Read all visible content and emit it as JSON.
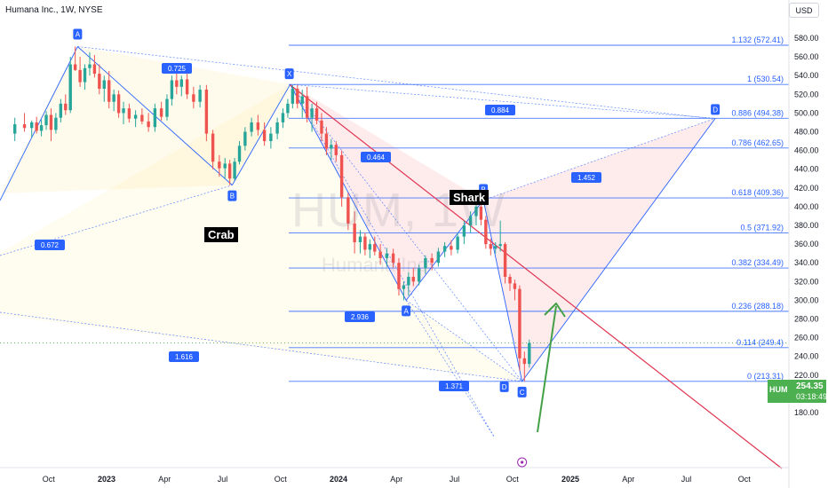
{
  "header": {
    "symbol_info": "Humana Inc., 1W, NYSE",
    "currency": "USD"
  },
  "watermark": {
    "ticker": "HUM, 1W",
    "name": "Humana Inc."
  },
  "price_tag": {
    "symbol": "HUM",
    "price": "254.35",
    "countdown": "03:18:49"
  },
  "patterns": {
    "crab": "Crab",
    "shark": "Shark"
  },
  "colors": {
    "candle_up": "#26a69a",
    "candle_down": "#ef5350",
    "pattern_line": "#2962ff",
    "trendline": "#e0334f",
    "arrow": "#43a047",
    "fib_line": "#2962ff"
  },
  "chart_data": {
    "type": "candlestick",
    "x_axis": {
      "ticks": [
        {
          "label": "Oct",
          "date": "2022-10"
        },
        {
          "label": "2023",
          "date": "2023-01"
        },
        {
          "label": "Apr",
          "date": "2023-04"
        },
        {
          "label": "Jul",
          "date": "2023-07"
        },
        {
          "label": "Oct",
          "date": "2023-10"
        },
        {
          "label": "2024",
          "date": "2024-01"
        },
        {
          "label": "Apr",
          "date": "2024-04"
        },
        {
          "label": "Jul",
          "date": "2024-07"
        },
        {
          "label": "Oct",
          "date": "2024-10"
        },
        {
          "label": "2025",
          "date": "2025-01"
        },
        {
          "label": "Apr",
          "date": "2025-04"
        },
        {
          "label": "Jul",
          "date": "2025-07"
        },
        {
          "label": "Oct",
          "date": "2025-10"
        }
      ]
    },
    "y_axis": {
      "range": [
        180,
        590
      ],
      "ticks": [
        "580.00",
        "560.00",
        "540.00",
        "520.00",
        "500.00",
        "480.00",
        "460.00",
        "440.00",
        "420.00",
        "400.00",
        "380.00",
        "360.00",
        "340.00",
        "320.00",
        "300.00",
        "280.00",
        "260.00",
        "240.00",
        "220.00",
        "200.00",
        "180.00"
      ]
    },
    "fib_levels": [
      {
        "label": "1.132 (572.41)",
        "value": 572.41
      },
      {
        "label": "1 (530.54)",
        "value": 530.54
      },
      {
        "label": "0.886 (494.38)",
        "value": 494.38
      },
      {
        "label": "0.786 (462.65)",
        "value": 462.65
      },
      {
        "label": "0.618 (409.36)",
        "value": 409.36
      },
      {
        "label": "0.5 (371.92)",
        "value": 371.92
      },
      {
        "label": "0.382 (334.49)",
        "value": 334.49
      },
      {
        "label": "0.236 (288.18)",
        "value": 288.18
      },
      {
        "label": "0.114 (249.4)",
        "value": 249.4
      },
      {
        "label": "0 (213.31)",
        "value": 213.31
      }
    ],
    "crab_pattern": {
      "points": [
        {
          "label": "",
          "date": "2022-04",
          "value": 490
        },
        {
          "label": "A",
          "date": "2022-11",
          "value": 571
        },
        {
          "label": "B",
          "date": "2023-07",
          "value": 423
        },
        {
          "label": "X",
          "date": "2023-10",
          "value": 530.54
        }
      ],
      "ratios": [
        "0.725",
        "0.672",
        "1.616"
      ]
    },
    "shark_pattern": {
      "points": [
        {
          "label": "X",
          "date": "2023-10",
          "value": 530.54
        },
        {
          "label": "A",
          "date": "2024-04",
          "value": 300
        },
        {
          "label": "B",
          "date": "2024-08",
          "value": 407
        },
        {
          "label": "C",
          "date": "2024-10",
          "value": 213.31
        },
        {
          "label": "D",
          "date": "2025-08",
          "value": 494.38
        }
      ],
      "ratios": [
        "0.884",
        "0.464",
        "2.936",
        "1.371",
        "1.452"
      ]
    },
    "d_marker": {
      "label": "D",
      "date": "2024-10",
      "value": 213.31
    },
    "last_price": 254.35,
    "candles": [
      {
        "d": "2022-08",
        "o": 478,
        "h": 495,
        "l": 470,
        "c": 488
      },
      {
        "d": "2022-08",
        "o": 488,
        "h": 500,
        "l": 480,
        "c": 484
      },
      {
        "d": "2022-09",
        "o": 484,
        "h": 492,
        "l": 474,
        "c": 490
      },
      {
        "d": "2022-09",
        "o": 490,
        "h": 496,
        "l": 478,
        "c": 481
      },
      {
        "d": "2022-09",
        "o": 481,
        "h": 493,
        "l": 475,
        "c": 487
      },
      {
        "d": "2022-09",
        "o": 487,
        "h": 502,
        "l": 482,
        "c": 498
      },
      {
        "d": "2022-10",
        "o": 498,
        "h": 505,
        "l": 470,
        "c": 482
      },
      {
        "d": "2022-10",
        "o": 482,
        "h": 500,
        "l": 478,
        "c": 495
      },
      {
        "d": "2022-10",
        "o": 495,
        "h": 515,
        "l": 490,
        "c": 510
      },
      {
        "d": "2022-10",
        "o": 510,
        "h": 520,
        "l": 498,
        "c": 503
      },
      {
        "d": "2022-11",
        "o": 503,
        "h": 560,
        "l": 500,
        "c": 552
      },
      {
        "d": "2022-11",
        "o": 552,
        "h": 571,
        "l": 545,
        "c": 546
      },
      {
        "d": "2022-11",
        "o": 546,
        "h": 560,
        "l": 528,
        "c": 533
      },
      {
        "d": "2022-11",
        "o": 533,
        "h": 552,
        "l": 525,
        "c": 548
      },
      {
        "d": "2022-12",
        "o": 548,
        "h": 565,
        "l": 540,
        "c": 552
      },
      {
        "d": "2022-12",
        "o": 552,
        "h": 562,
        "l": 538,
        "c": 542
      },
      {
        "d": "2022-12",
        "o": 542,
        "h": 552,
        "l": 520,
        "c": 526
      },
      {
        "d": "2022-12",
        "o": 526,
        "h": 540,
        "l": 512,
        "c": 535
      },
      {
        "d": "2023-01",
        "o": 535,
        "h": 545,
        "l": 505,
        "c": 512
      },
      {
        "d": "2023-01",
        "o": 512,
        "h": 525,
        "l": 502,
        "c": 520
      },
      {
        "d": "2023-01",
        "o": 520,
        "h": 524,
        "l": 495,
        "c": 500
      },
      {
        "d": "2023-01",
        "o": 500,
        "h": 512,
        "l": 488,
        "c": 505
      },
      {
        "d": "2023-02",
        "o": 505,
        "h": 510,
        "l": 490,
        "c": 494
      },
      {
        "d": "2023-02",
        "o": 494,
        "h": 503,
        "l": 485,
        "c": 498
      },
      {
        "d": "2023-02",
        "o": 498,
        "h": 505,
        "l": 488,
        "c": 491
      },
      {
        "d": "2023-03",
        "o": 491,
        "h": 500,
        "l": 480,
        "c": 485
      },
      {
        "d": "2023-03",
        "o": 485,
        "h": 510,
        "l": 480,
        "c": 505
      },
      {
        "d": "2023-03",
        "o": 505,
        "h": 512,
        "l": 492,
        "c": 496
      },
      {
        "d": "2023-04",
        "o": 496,
        "h": 520,
        "l": 492,
        "c": 515
      },
      {
        "d": "2023-04",
        "o": 515,
        "h": 540,
        "l": 508,
        "c": 535
      },
      {
        "d": "2023-04",
        "o": 535,
        "h": 545,
        "l": 520,
        "c": 528
      },
      {
        "d": "2023-04",
        "o": 528,
        "h": 540,
        "l": 518,
        "c": 536
      },
      {
        "d": "2023-05",
        "o": 536,
        "h": 542,
        "l": 515,
        "c": 520
      },
      {
        "d": "2023-05",
        "o": 520,
        "h": 528,
        "l": 505,
        "c": 512
      },
      {
        "d": "2023-05",
        "o": 512,
        "h": 530,
        "l": 506,
        "c": 525
      },
      {
        "d": "2023-06",
        "o": 525,
        "h": 530,
        "l": 470,
        "c": 478
      },
      {
        "d": "2023-06",
        "o": 478,
        "h": 482,
        "l": 440,
        "c": 448
      },
      {
        "d": "2023-06",
        "o": 448,
        "h": 455,
        "l": 432,
        "c": 441
      },
      {
        "d": "2023-07",
        "o": 441,
        "h": 452,
        "l": 430,
        "c": 446
      },
      {
        "d": "2023-07",
        "o": 446,
        "h": 450,
        "l": 423,
        "c": 430
      },
      {
        "d": "2023-07",
        "o": 430,
        "h": 452,
        "l": 428,
        "c": 448
      },
      {
        "d": "2023-07",
        "o": 448,
        "h": 470,
        "l": 445,
        "c": 465
      },
      {
        "d": "2023-08",
        "o": 465,
        "h": 485,
        "l": 460,
        "c": 480
      },
      {
        "d": "2023-08",
        "o": 480,
        "h": 495,
        "l": 475,
        "c": 490
      },
      {
        "d": "2023-08",
        "o": 490,
        "h": 498,
        "l": 476,
        "c": 482
      },
      {
        "d": "2023-09",
        "o": 482,
        "h": 490,
        "l": 465,
        "c": 470
      },
      {
        "d": "2023-09",
        "o": 470,
        "h": 485,
        "l": 462,
        "c": 478
      },
      {
        "d": "2023-09",
        "o": 478,
        "h": 495,
        "l": 472,
        "c": 490
      },
      {
        "d": "2023-10",
        "o": 490,
        "h": 505,
        "l": 484,
        "c": 500
      },
      {
        "d": "2023-10",
        "o": 500,
        "h": 515,
        "l": 495,
        "c": 510
      },
      {
        "d": "2023-10",
        "o": 510,
        "h": 530,
        "l": 505,
        "c": 526
      },
      {
        "d": "2023-10",
        "o": 526,
        "h": 530,
        "l": 505,
        "c": 510
      },
      {
        "d": "2023-11",
        "o": 510,
        "h": 525,
        "l": 495,
        "c": 518
      },
      {
        "d": "2023-11",
        "o": 518,
        "h": 528,
        "l": 490,
        "c": 495
      },
      {
        "d": "2023-11",
        "o": 495,
        "h": 510,
        "l": 480,
        "c": 505
      },
      {
        "d": "2023-11",
        "o": 505,
        "h": 512,
        "l": 488,
        "c": 492
      },
      {
        "d": "2023-12",
        "o": 492,
        "h": 500,
        "l": 470,
        "c": 478
      },
      {
        "d": "2023-12",
        "o": 478,
        "h": 485,
        "l": 455,
        "c": 462
      },
      {
        "d": "2023-12",
        "o": 462,
        "h": 472,
        "l": 450,
        "c": 466
      },
      {
        "d": "2023-12",
        "o": 466,
        "h": 470,
        "l": 448,
        "c": 455
      },
      {
        "d": "2024-01",
        "o": 455,
        "h": 460,
        "l": 400,
        "c": 410
      },
      {
        "d": "2024-01",
        "o": 410,
        "h": 415,
        "l": 375,
        "c": 382
      },
      {
        "d": "2024-01",
        "o": 382,
        "h": 395,
        "l": 350,
        "c": 362
      },
      {
        "d": "2024-02",
        "o": 362,
        "h": 375,
        "l": 350,
        "c": 368
      },
      {
        "d": "2024-02",
        "o": 368,
        "h": 372,
        "l": 348,
        "c": 354
      },
      {
        "d": "2024-02",
        "o": 354,
        "h": 365,
        "l": 345,
        "c": 360
      },
      {
        "d": "2024-02",
        "o": 360,
        "h": 368,
        "l": 348,
        "c": 352
      },
      {
        "d": "2024-03",
        "o": 352,
        "h": 360,
        "l": 338,
        "c": 345
      },
      {
        "d": "2024-03",
        "o": 345,
        "h": 356,
        "l": 336,
        "c": 350
      },
      {
        "d": "2024-03",
        "o": 350,
        "h": 355,
        "l": 335,
        "c": 340
      },
      {
        "d": "2024-04",
        "o": 340,
        "h": 345,
        "l": 305,
        "c": 312
      },
      {
        "d": "2024-04",
        "o": 312,
        "h": 320,
        "l": 300,
        "c": 316
      },
      {
        "d": "2024-04",
        "o": 316,
        "h": 330,
        "l": 305,
        "c": 325
      },
      {
        "d": "2024-04",
        "o": 325,
        "h": 335,
        "l": 315,
        "c": 320
      },
      {
        "d": "2024-05",
        "o": 320,
        "h": 338,
        "l": 316,
        "c": 334
      },
      {
        "d": "2024-05",
        "o": 334,
        "h": 348,
        "l": 328,
        "c": 345
      },
      {
        "d": "2024-05",
        "o": 345,
        "h": 350,
        "l": 332,
        "c": 340
      },
      {
        "d": "2024-06",
        "o": 340,
        "h": 356,
        "l": 336,
        "c": 352
      },
      {
        "d": "2024-06",
        "o": 352,
        "h": 362,
        "l": 346,
        "c": 358
      },
      {
        "d": "2024-06",
        "o": 358,
        "h": 364,
        "l": 348,
        "c": 354
      },
      {
        "d": "2024-07",
        "o": 354,
        "h": 372,
        "l": 350,
        "c": 368
      },
      {
        "d": "2024-07",
        "o": 368,
        "h": 385,
        "l": 360,
        "c": 380
      },
      {
        "d": "2024-07",
        "o": 380,
        "h": 395,
        "l": 372,
        "c": 390
      },
      {
        "d": "2024-08",
        "o": 390,
        "h": 407,
        "l": 380,
        "c": 400
      },
      {
        "d": "2024-08",
        "o": 400,
        "h": 404,
        "l": 380,
        "c": 386
      },
      {
        "d": "2024-08",
        "o": 386,
        "h": 390,
        "l": 355,
        "c": 360
      },
      {
        "d": "2024-08",
        "o": 360,
        "h": 366,
        "l": 348,
        "c": 355
      },
      {
        "d": "2024-09",
        "o": 355,
        "h": 362,
        "l": 350,
        "c": 358
      },
      {
        "d": "2024-09",
        "o": 358,
        "h": 385,
        "l": 352,
        "c": 360
      },
      {
        "d": "2024-09",
        "o": 360,
        "h": 362,
        "l": 318,
        "c": 325
      },
      {
        "d": "2024-09",
        "o": 325,
        "h": 328,
        "l": 310,
        "c": 318
      },
      {
        "d": "2024-10",
        "o": 318,
        "h": 322,
        "l": 300,
        "c": 312
      },
      {
        "d": "2024-10",
        "o": 312,
        "h": 316,
        "l": 225,
        "c": 238
      },
      {
        "d": "2024-10",
        "o": 238,
        "h": 245,
        "l": 213.31,
        "c": 232
      },
      {
        "d": "2024-10",
        "o": 232,
        "h": 258,
        "l": 228,
        "c": 254.35
      }
    ]
  }
}
